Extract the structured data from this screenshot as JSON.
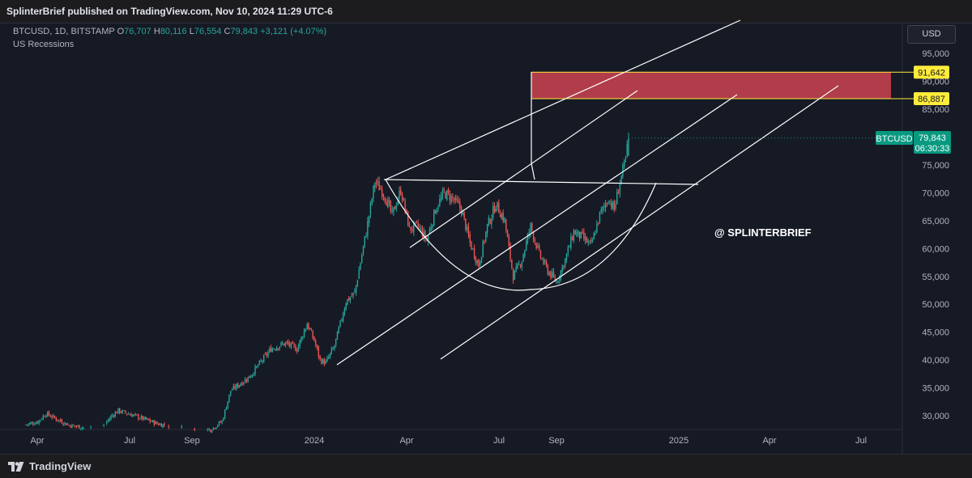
{
  "header": {
    "publish_text": "SplinterBrief published on TradingView.com, Nov 10, 2024 11:29 UTC-6"
  },
  "legend": {
    "symbol": "BTCUSD, 1D, BITSTAMP",
    "open_label": "O",
    "open": "76,707",
    "high_label": "H",
    "high": "80,116",
    "low_label": "L",
    "low": "76,554",
    "close_label": "C",
    "close": "79,843",
    "change": "+3,121 (+4.07%)",
    "indicator": "US Recessions"
  },
  "currency": "USD",
  "watermark": "@ SPLINTERBRIEF",
  "footer": {
    "brand": "TradingView"
  },
  "colors": {
    "up": "#26a69a",
    "down": "#ef5350",
    "zone": "#c2404f",
    "label_yellow": "#ffeb3b",
    "price_badge": "#089981",
    "drawing": "#ffffff"
  },
  "chart_data": {
    "type": "candlestick",
    "symbol": "BTCUSD",
    "timeframe": "1D",
    "exchange": "BITSTAMP",
    "x_ticks": [
      "Apr",
      "Jul",
      "Sep",
      "2024",
      "Apr",
      "Jul",
      "Sep",
      "2025",
      "Apr",
      "Jul"
    ],
    "y_ticks": [
      "30,000",
      "35,000",
      "40,000",
      "45,000",
      "50,000",
      "55,000",
      "60,000",
      "65,000",
      "70,000",
      "75,000",
      "80,000",
      "85,000",
      "90,000",
      "95,000"
    ],
    "ylim": [
      27500,
      98500
    ],
    "price_lines": [
      {
        "label": "91,642",
        "value": 91642
      },
      {
        "label": "86,887",
        "value": 86887
      }
    ],
    "target_zone": {
      "low": 86887,
      "high": 91642
    },
    "current_price": {
      "symbol": "BTCUSD",
      "value": "79,843",
      "countdown": "06:30:33"
    },
    "close_path": [
      {
        "i": 0,
        "v": 28400
      },
      {
        "i": 8,
        "v": 28900
      },
      {
        "i": 14,
        "v": 30400
      },
      {
        "i": 22,
        "v": 29300
      },
      {
        "i": 30,
        "v": 28300
      },
      {
        "i": 40,
        "v": 27900
      },
      {
        "i": 52,
        "v": 27700
      },
      {
        "i": 60,
        "v": 30100
      },
      {
        "i": 64,
        "v": 30900
      },
      {
        "i": 72,
        "v": 30300
      },
      {
        "i": 82,
        "v": 29400
      },
      {
        "i": 92,
        "v": 28500
      },
      {
        "i": 110,
        "v": 27800
      },
      {
        "i": 128,
        "v": 27500
      },
      {
        "i": 136,
        "v": 29000
      },
      {
        "i": 142,
        "v": 34500
      },
      {
        "i": 155,
        "v": 37000
      },
      {
        "i": 170,
        "v": 42000
      },
      {
        "i": 180,
        "v": 43000
      },
      {
        "i": 188,
        "v": 42000
      },
      {
        "i": 195,
        "v": 46500
      },
      {
        "i": 200,
        "v": 43500
      },
      {
        "i": 204,
        "v": 40000
      },
      {
        "i": 208,
        "v": 39500
      },
      {
        "i": 214,
        "v": 42500
      },
      {
        "i": 222,
        "v": 50500
      },
      {
        "i": 228,
        "v": 52000
      },
      {
        "i": 236,
        "v": 63000
      },
      {
        "i": 242,
        "v": 72000
      },
      {
        "i": 248,
        "v": 70000
      },
      {
        "i": 254,
        "v": 66000
      },
      {
        "i": 260,
        "v": 70500
      },
      {
        "i": 266,
        "v": 63500
      },
      {
        "i": 272,
        "v": 64000
      },
      {
        "i": 278,
        "v": 61500
      },
      {
        "i": 284,
        "v": 67000
      },
      {
        "i": 290,
        "v": 70000
      },
      {
        "i": 296,
        "v": 69000
      },
      {
        "i": 302,
        "v": 67000
      },
      {
        "i": 308,
        "v": 61000
      },
      {
        "i": 314,
        "v": 57000
      },
      {
        "i": 320,
        "v": 64000
      },
      {
        "i": 326,
        "v": 68000
      },
      {
        "i": 332,
        "v": 65000
      },
      {
        "i": 338,
        "v": 55000
      },
      {
        "i": 344,
        "v": 58000
      },
      {
        "i": 350,
        "v": 64000
      },
      {
        "i": 356,
        "v": 59000
      },
      {
        "i": 362,
        "v": 56000
      },
      {
        "i": 368,
        "v": 54000
      },
      {
        "i": 374,
        "v": 58000
      },
      {
        "i": 380,
        "v": 63000
      },
      {
        "i": 386,
        "v": 62000
      },
      {
        "i": 392,
        "v": 60500
      },
      {
        "i": 398,
        "v": 66000
      },
      {
        "i": 404,
        "v": 69000
      },
      {
        "i": 408,
        "v": 67000
      },
      {
        "i": 412,
        "v": 72000
      },
      {
        "i": 416,
        "v": 76000
      },
      {
        "i": 418,
        "v": 79843
      }
    ]
  }
}
